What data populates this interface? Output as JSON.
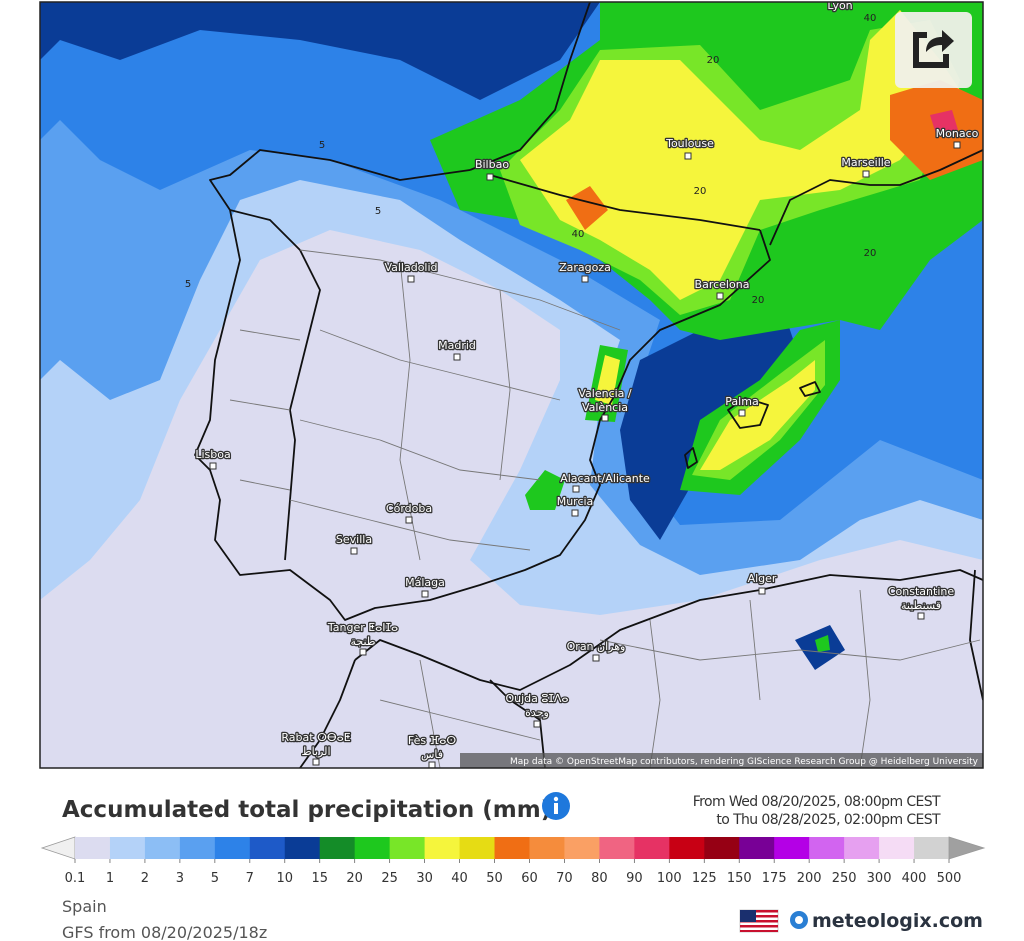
{
  "map": {
    "cities": [
      [
        "Lyon"
      ],
      [
        "Toulouse"
      ],
      [
        "Monaco"
      ],
      [
        "Bilbao"
      ],
      [
        "Marseille"
      ],
      [
        "Zaragoza"
      ],
      [
        "Barcelona"
      ],
      [
        "Valladolid"
      ],
      [
        "Madrid"
      ],
      [
        "Valencia /",
        "València"
      ],
      [
        "Palma"
      ],
      [
        "Lisboa"
      ],
      [
        "Alacant/Alicante"
      ],
      [
        "Murcia"
      ],
      [
        "Córdoba"
      ],
      [
        "Sevilla"
      ],
      [
        "Málaga"
      ],
      [
        "Alger"
      ],
      [
        "Constantine",
        "قسنطينة"
      ],
      [
        "Tanger ⵟⴰⵏⵊⴰ",
        "طنجة"
      ],
      [
        "Oran وهران"
      ],
      [
        "Oujda ⵓⵊⴷⴰ",
        "وجدة"
      ],
      [
        "Rabat ⵔⴱⴰⵟ",
        "الرباط"
      ],
      [
        "Fès ⴼⴰⵙ",
        "فاس"
      ]
    ],
    "contour_labels": [
      "5",
      "5",
      "5",
      "20",
      "20",
      "20",
      "20",
      "40",
      "40"
    ],
    "attribution": "Map data © OpenStreetMap contributors, rendering GIScience Research Group @ Heidelberg University"
  },
  "header": {
    "title": "Accumulated total precipitation (mm)",
    "from": "From Wed 08/20/2025, 08:00pm CEST",
    "to": "to Thu 08/28/2025, 02:00pm CEST"
  },
  "legend": {
    "ticks": [
      0.1,
      1,
      2,
      3,
      5,
      7,
      10,
      15,
      20,
      25,
      30,
      40,
      50,
      60,
      70,
      80,
      90,
      100,
      125,
      150,
      175,
      200,
      250,
      300,
      400,
      500
    ],
    "colors": [
      "#f0f0f0",
      "#dcdcf0",
      "#b4d2f8",
      "#8cbef5",
      "#5aa0f0",
      "#2d82e8",
      "#1e5ac8",
      "#0a3c96",
      "#148c28",
      "#1ec81e",
      "#78e628",
      "#f5f53c",
      "#e6dc14",
      "#f06e14",
      "#f58c3c",
      "#faa064",
      "#f06482",
      "#e63264",
      "#c80014",
      "#960014",
      "#780096",
      "#b400e6",
      "#d264f0",
      "#e6a0f0",
      "#f5dcf5",
      "#d2d2d2",
      "#a0a0a0"
    ]
  },
  "footer": {
    "region": "Spain",
    "model": "GFS from 08/20/2025/18z",
    "brand": "meteologix.com"
  }
}
